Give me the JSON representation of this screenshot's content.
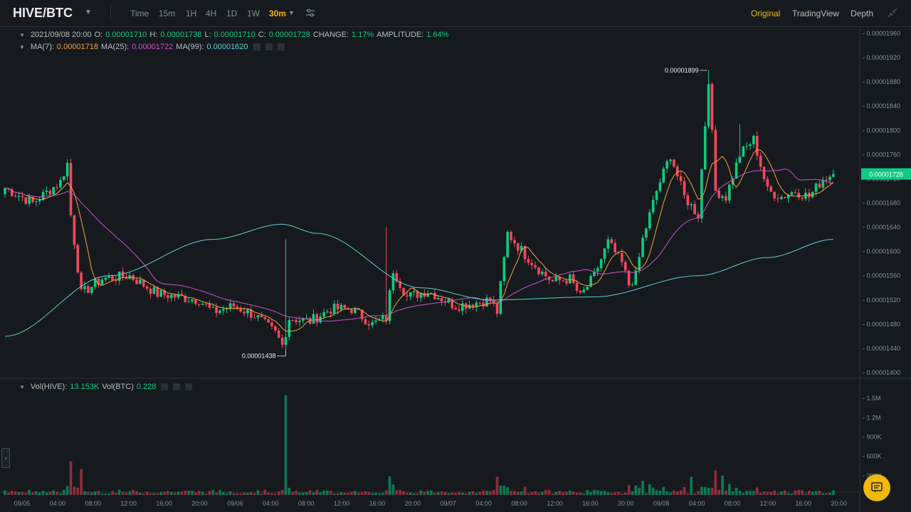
{
  "header": {
    "pair": "HIVE/BTC",
    "intervals": [
      "Time",
      "15m",
      "1H",
      "4H",
      "1D",
      "1W",
      "30m"
    ],
    "active_interval": "30m",
    "views": [
      "Original",
      "TradingView",
      "Depth"
    ],
    "active_view": "Original"
  },
  "ohlc": {
    "date": "2021/09/08 20:00",
    "o_label": "O:",
    "o": "0.00001710",
    "h_label": "H:",
    "h": "0.00001738",
    "l_label": "L:",
    "l": "0.00001710",
    "c_label": "C:",
    "c": "0.00001728",
    "change_label": "CHANGE:",
    "change": "1.17%",
    "amplitude_label": "AMPLITUDE:",
    "amplitude": "1.64%"
  },
  "ma": {
    "ma7_label": "MA(7):",
    "ma7": "0.00001718",
    "ma25_label": "MA(25):",
    "ma25": "0.00001722",
    "ma99_label": "MA(99):",
    "ma99": "0.00001620"
  },
  "vol": {
    "hive_label": "Vol(HIVE):",
    "hive": "13.153K",
    "btc_label": "Vol(BTC)",
    "btc": "0.228"
  },
  "colors": {
    "up": "#0ecb81",
    "down": "#f6465d",
    "ma7": "#f0a33a",
    "ma25": "#c653c6",
    "ma99": "#5ad0d0",
    "accent": "#f0b90b",
    "bg": "#161a1e",
    "grid": "#2b3139"
  },
  "chart_data": {
    "type": "candlestick",
    "price_ticks": [
      "0.00001960",
      "0.00001920",
      "0.00001880",
      "0.00001840",
      "0.00001800",
      "0.00001760",
      "0.00001720",
      "0.00001680",
      "0.00001640",
      "0.00001600",
      "0.00001560",
      "0.00001520",
      "0.00001480",
      "0.00001440",
      "0.00001400"
    ],
    "price_range": [
      1.4e-05,
      1.97e-05
    ],
    "last_price": "0.00001728",
    "high_marker": "0.00001899",
    "low_marker": "0.00001438",
    "volume_ticks": [
      "1.5M",
      "1.2M",
      "900K",
      "600K",
      "300K"
    ],
    "volume_range": [
      0,
      1700000
    ],
    "time_ticks": [
      "09/05",
      "04:00",
      "08:00",
      "12:00",
      "16:00",
      "20:00",
      "09/06",
      "04:00",
      "08:00",
      "12:00",
      "16:00",
      "20:00",
      "09/07",
      "04:00",
      "08:00",
      "12:00",
      "16:00",
      "20:00",
      "09/08",
      "04:00",
      "08:00",
      "12:00",
      "16:00",
      "20:00"
    ],
    "candle_step_px": 4.87,
    "first_candle_x": 7,
    "close_path": [
      [
        0,
        1.705e-05
      ],
      [
        8,
        1.68e-05
      ],
      [
        16,
        1.715e-05
      ],
      [
        18,
        1.745e-05
      ],
      [
        19,
        1.66e-05
      ],
      [
        22,
        1.53e-05
      ],
      [
        28,
        1.555e-05
      ],
      [
        36,
        1.56e-05
      ],
      [
        44,
        1.53e-05
      ],
      [
        56,
        1.52e-05
      ],
      [
        60,
        1.5e-05
      ],
      [
        66,
        1.51e-05
      ],
      [
        72,
        1.495e-05
      ],
      [
        78,
        1.465e-05
      ],
      [
        80,
        1.445e-05
      ],
      [
        82,
        1.49e-05
      ],
      [
        88,
        1.485e-05
      ],
      [
        94,
        1.505e-05
      ],
      [
        100,
        1.505e-05
      ],
      [
        106,
        1.48e-05
      ],
      [
        110,
        1.49e-05
      ],
      [
        112,
        1.57e-05
      ],
      [
        116,
        1.525e-05
      ],
      [
        122,
        1.535e-05
      ],
      [
        130,
        1.51e-05
      ],
      [
        140,
        1.52e-05
      ],
      [
        142,
        1.5e-05
      ],
      [
        145,
        1.63e-05
      ],
      [
        150,
        1.595e-05
      ],
      [
        155,
        1.565e-05
      ],
      [
        158,
        1.55e-05
      ],
      [
        163,
        1.555e-05
      ],
      [
        166,
        1.525e-05
      ],
      [
        170,
        1.56e-05
      ],
      [
        174,
        1.615e-05
      ],
      [
        178,
        1.58e-05
      ],
      [
        180,
        1.545e-05
      ],
      [
        182,
        1.56e-05
      ],
      [
        184,
        1.62e-05
      ],
      [
        188,
        1.7e-05
      ],
      [
        192,
        1.76e-05
      ],
      [
        196,
        1.69e-05
      ],
      [
        200,
        1.66e-05
      ],
      [
        203,
        1.885e-05
      ],
      [
        205,
        1.7e-05
      ],
      [
        208,
        1.69e-05
      ],
      [
        212,
        1.76e-05
      ],
      [
        216,
        1.785e-05
      ],
      [
        220,
        1.7e-05
      ],
      [
        224,
        1.69e-05
      ],
      [
        228,
        1.7e-05
      ],
      [
        232,
        1.69e-05
      ],
      [
        236,
        1.72e-05
      ],
      [
        239,
        1.728e-05
      ]
    ],
    "volume_spikes": [
      [
        19,
        520000
      ],
      [
        22,
        400000
      ],
      [
        81,
        1550000
      ],
      [
        111,
        290000
      ],
      [
        142,
        280000
      ],
      [
        184,
        220000
      ],
      [
        198,
        280000
      ],
      [
        205,
        380000
      ],
      [
        207,
        300000
      ]
    ],
    "series": [
      {
        "name": "MA(7)",
        "color": "#f0a33a"
      },
      {
        "name": "MA(25)",
        "color": "#c653c6"
      },
      {
        "name": "MA(99)",
        "color": "#5ad0d0"
      }
    ]
  }
}
